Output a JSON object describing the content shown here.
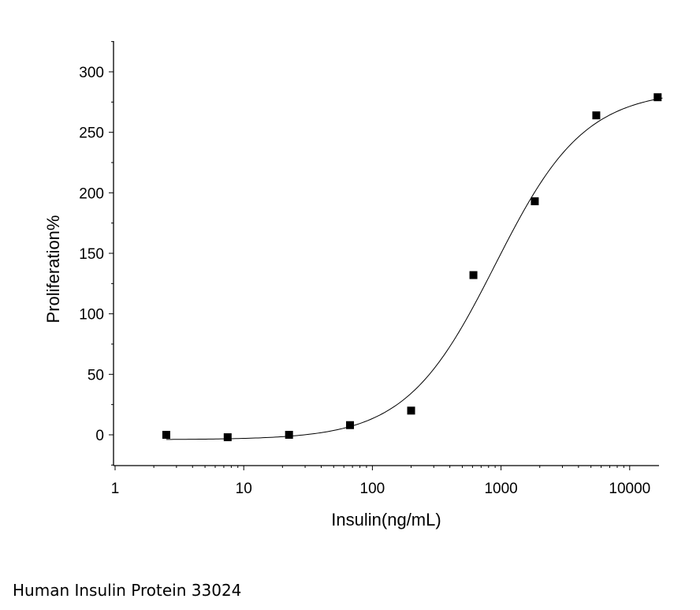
{
  "chart_data": {
    "type": "scatter",
    "xlabel": "Insulin(ng/mL)",
    "ylabel": "Proliferation%",
    "x_scale": "log",
    "xlim": [
      1,
      18000
    ],
    "ylim": [
      -25,
      325
    ],
    "x_ticks": [
      1,
      10,
      100,
      1000,
      10000
    ],
    "x_tick_labels": [
      "1",
      "10",
      "100",
      "1000",
      "10000"
    ],
    "y_ticks": [
      0,
      50,
      100,
      150,
      200,
      250,
      300
    ],
    "y_tick_labels": [
      "0",
      "50",
      "100",
      "150",
      "200",
      "250",
      "300"
    ],
    "grid": false,
    "points": [
      {
        "x": 2.5,
        "y": 0
      },
      {
        "x": 7.5,
        "y": -2
      },
      {
        "x": 22.5,
        "y": 0
      },
      {
        "x": 67,
        "y": 8
      },
      {
        "x": 200,
        "y": 20
      },
      {
        "x": 610,
        "y": 132
      },
      {
        "x": 1830,
        "y": 193
      },
      {
        "x": 5500,
        "y": 264
      },
      {
        "x": 16500,
        "y": 279
      }
    ],
    "fit": {
      "type": "logistic",
      "bottom": -4,
      "top": 285,
      "ec50": 900,
      "hill": 1.25
    }
  },
  "caption": "Human Insulin Protein 33024"
}
